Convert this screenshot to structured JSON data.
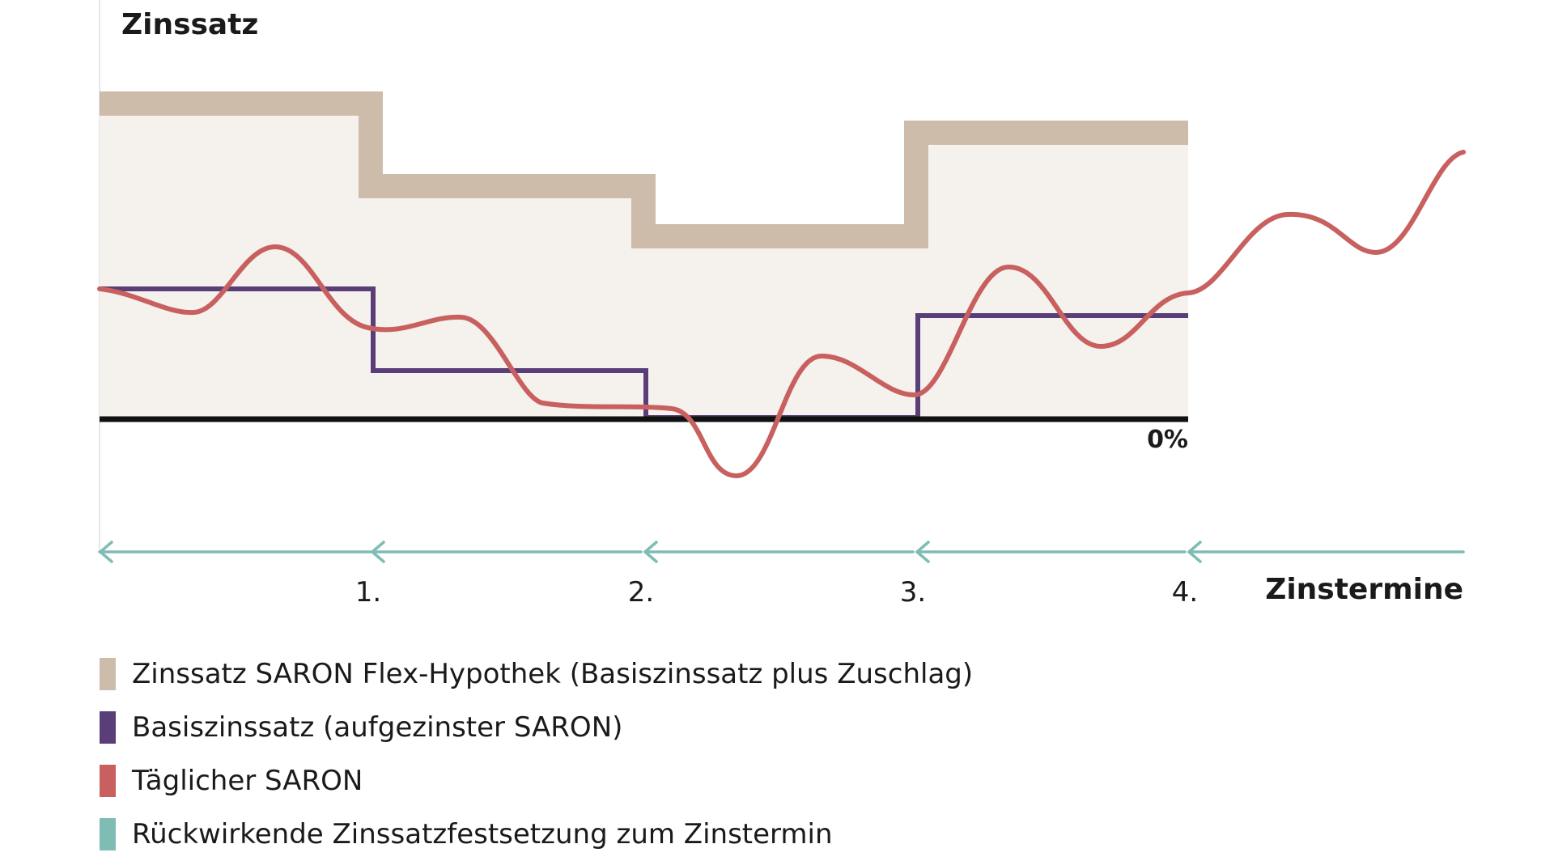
{
  "diagram": {
    "y_axis_title": "Zinssatz",
    "x_axis_title": "Zinstermine",
    "zero_label": "0%",
    "ticks": [
      "1.",
      "2.",
      "3.",
      "4."
    ],
    "colors": {
      "flex_fill": "#f5f1ed",
      "flex_line": "#cebcab",
      "basis": "#5a3e78",
      "saron": "#c8605f",
      "arrow": "#7fbcb4",
      "axis": "#111111"
    },
    "legend": [
      {
        "label": "Zinssatz SARON Flex-Hypothek (Basiszinssatz plus Zuschlag)",
        "color": "#cebcab"
      },
      {
        "label": "Basiszinssatz (aufgezinster SARON)",
        "color": "#5a3e78"
      },
      {
        "label": "Täglicher SARON",
        "color": "#c8605f"
      },
      {
        "label": "Rückwirkende Zinssatzfestsetzung zum Zinstermin",
        "color": "#7fbcb4"
      }
    ]
  }
}
